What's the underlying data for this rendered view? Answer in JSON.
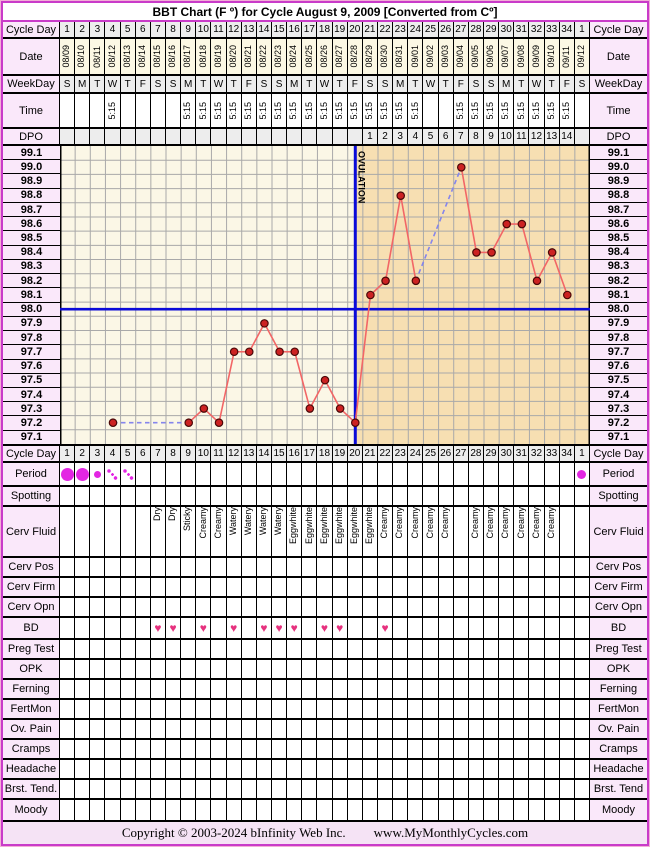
{
  "title": "BBT Chart (F º) for Cycle August 9, 2009  [Converted from Cº]",
  "footer": {
    "copyright": "Copyright © 2003-2024 bInfinity Web Inc.",
    "website": "www.MyMonthlyCycles.com"
  },
  "colors": {
    "accent_magenta": "#C93BC9",
    "label_bg": "#FAE8FA",
    "gray_bg": "#EDEDED",
    "ivory_bg": "#FCF8E4",
    "footer_bg": "#F5E3F5",
    "chart_bg_pre_ovulation": "#FBF7E6",
    "chart_bg_post_ovulation": "#F7DFB2",
    "grid_gray": "#A9A9A9",
    "coverline_blue": "#0A0AD8",
    "temp_line_red": "#F26666",
    "temp_point_red": "#CC2222",
    "temp_point_outline": "#4A0808",
    "dashed_gap_blue": "#8585EC",
    "heart_pink": "#E6317E",
    "period_magenta": "#E326E3"
  },
  "header": {
    "labels": {
      "cycle_day": "Cycle Day",
      "date": "Date",
      "weekday": "WeekDay",
      "time": "Time",
      "dpo": "DPO"
    },
    "cycle_days": [
      "1",
      "2",
      "3",
      "4",
      "5",
      "6",
      "7",
      "8",
      "9",
      "10",
      "11",
      "12",
      "13",
      "14",
      "15",
      "16",
      "17",
      "18",
      "19",
      "20",
      "21",
      "22",
      "23",
      "24",
      "25",
      "26",
      "27",
      "28",
      "29",
      "30",
      "31",
      "32",
      "33",
      "34",
      "1"
    ],
    "dates": [
      "08/09",
      "08/10",
      "08/11",
      "08/12",
      "08/13",
      "08/14",
      "08/15",
      "08/16",
      "08/17",
      "08/18",
      "08/19",
      "08/20",
      "08/21",
      "08/22",
      "08/23",
      "08/24",
      "08/25",
      "08/26",
      "08/27",
      "08/28",
      "08/29",
      "08/30",
      "08/31",
      "09/01",
      "09/02",
      "09/03",
      "09/04",
      "09/05",
      "09/06",
      "09/07",
      "09/08",
      "09/09",
      "09/10",
      "09/11",
      "09/12"
    ],
    "weekdays": [
      "S",
      "M",
      "T",
      "W",
      "T",
      "F",
      "S",
      "S",
      "M",
      "T",
      "W",
      "T",
      "F",
      "S",
      "S",
      "M",
      "T",
      "W",
      "T",
      "F",
      "S",
      "S",
      "M",
      "T",
      "W",
      "T",
      "F",
      "S",
      "S",
      "M",
      "T",
      "W",
      "T",
      "F",
      "S"
    ],
    "times": [
      "",
      "",
      "",
      "5:15",
      "",
      "",
      "",
      "",
      "5:15",
      "5:15",
      "5:15",
      "5:15",
      "5:15",
      "5:15",
      "5:15",
      "5:15",
      "5:15",
      "5:15",
      "5:15",
      "5:15",
      "5:15",
      "5:15",
      "5:15",
      "5:15",
      "",
      "",
      "5:15",
      "5:15",
      "5:15",
      "5:15",
      "5:15",
      "5:15",
      "5:15",
      "5:15",
      ""
    ],
    "dpo": [
      "",
      "",
      "",
      "",
      "",
      "",
      "",
      "",
      "",
      "",
      "",
      "",
      "",
      "",
      "",
      "",
      "",
      "",
      "",
      "",
      "1",
      "2",
      "3",
      "4",
      "5",
      "6",
      "7",
      "8",
      "9",
      "10",
      "11",
      "12",
      "13",
      "14",
      ""
    ]
  },
  "chart_data": {
    "type": "line",
    "title": "Basal body temperature by cycle day (°F)",
    "ylabel": "Temperature (F º)",
    "ylim": [
      97.1,
      99.1
    ],
    "ytick_labels": [
      "99.1",
      "99.0",
      "98.9",
      "98.8",
      "98.7",
      "98.6",
      "98.5",
      "98.4",
      "98.3",
      "98.2",
      "98.1",
      "98.0",
      "97.9",
      "97.8",
      "97.7",
      "97.6",
      "97.5",
      "97.4",
      "97.3",
      "97.2",
      "97.1"
    ],
    "x_range_days": [
      1,
      35
    ],
    "temps": [
      {
        "day": 4,
        "temp": 97.2
      },
      {
        "day": 9,
        "temp": 97.2
      },
      {
        "day": 10,
        "temp": 97.3
      },
      {
        "day": 11,
        "temp": 97.2
      },
      {
        "day": 12,
        "temp": 97.7
      },
      {
        "day": 13,
        "temp": 97.7
      },
      {
        "day": 14,
        "temp": 97.9
      },
      {
        "day": 15,
        "temp": 97.7
      },
      {
        "day": 16,
        "temp": 97.7
      },
      {
        "day": 17,
        "temp": 97.3
      },
      {
        "day": 18,
        "temp": 97.5
      },
      {
        "day": 19,
        "temp": 97.3
      },
      {
        "day": 20,
        "temp": 97.2
      },
      {
        "day": 21,
        "temp": 98.1
      },
      {
        "day": 22,
        "temp": 98.2
      },
      {
        "day": 23,
        "temp": 98.8
      },
      {
        "day": 24,
        "temp": 98.2
      },
      {
        "day": 27,
        "temp": 99.0
      },
      {
        "day": 28,
        "temp": 98.4
      },
      {
        "day": 29,
        "temp": 98.4
      },
      {
        "day": 30,
        "temp": 98.6
      },
      {
        "day": 31,
        "temp": 98.6
      },
      {
        "day": 32,
        "temp": 98.2
      },
      {
        "day": 33,
        "temp": 98.4
      },
      {
        "day": 34,
        "temp": 98.1
      }
    ],
    "missing_days_dashed": [
      [
        4,
        9
      ],
      [
        24,
        27
      ]
    ],
    "coverline_temp": 98.0,
    "ovulation_day": 20,
    "ovulation_label": "OVULATION"
  },
  "tracking": {
    "rows": [
      {
        "key": "period",
        "label": "Period",
        "label_right": "Period"
      },
      {
        "key": "spotting",
        "label": "Spotting",
        "label_right": "Spotting"
      },
      {
        "key": "cerv_fluid",
        "label": "Cerv Fluid",
        "label_right": "Cerv Fluid"
      },
      {
        "key": "cerv_pos",
        "label": "Cerv Pos",
        "label_right": "Cerv Pos"
      },
      {
        "key": "cerv_firm",
        "label": "Cerv Firm",
        "label_right": "Cerv Firm"
      },
      {
        "key": "cerv_opn",
        "label": "Cerv Opn",
        "label_right": "Cerv Opn"
      },
      {
        "key": "bd",
        "label": "BD",
        "label_right": "BD"
      },
      {
        "key": "preg_test",
        "label": "Preg Test",
        "label_right": "Preg Test"
      },
      {
        "key": "opk",
        "label": "OPK",
        "label_right": "OPK"
      },
      {
        "key": "ferning",
        "label": "Ferning",
        "label_right": "Ferning"
      },
      {
        "key": "fertmon",
        "label": "FertMon",
        "label_right": "FertMon"
      },
      {
        "key": "ov_pain",
        "label": "Ov. Pain",
        "label_right": "Ov. Pain"
      },
      {
        "key": "cramps",
        "label": "Cramps",
        "label_right": "Cramps"
      },
      {
        "key": "headache",
        "label": "Headache",
        "label_right": "Headache"
      },
      {
        "key": "brst_tend",
        "label": "Brst. Tend.",
        "label_right": "Brst. Tend"
      },
      {
        "key": "moody",
        "label": "Moody",
        "label_right": "Moody"
      }
    ],
    "period_markers": {
      "1": "heavy",
      "2": "heavy",
      "3": "medium",
      "4": "light",
      "5": "light",
      "35": "start"
    },
    "cerv_fluid": {
      "7": "Dry",
      "8": "Dry",
      "9": "Sticky",
      "10": "Creamy",
      "11": "Creamy",
      "12": "Watery",
      "13": "Watery",
      "14": "Watery",
      "15": "Watery",
      "16": "Eggwhite",
      "17": "Eggwhite",
      "18": "Eggwhite",
      "19": "Eggwhite",
      "20": "Eggwhite",
      "21": "Eggwhite",
      "22": "Creamy",
      "23": "Creamy",
      "24": "Creamy",
      "25": "Creamy",
      "26": "Creamy",
      "28": "Creamy",
      "29": "Creamy",
      "30": "Creamy",
      "31": "Creamy",
      "32": "Creamy",
      "33": "Creamy"
    },
    "bd_heart_days": [
      7,
      8,
      10,
      12,
      14,
      15,
      16,
      18,
      19,
      22
    ]
  }
}
